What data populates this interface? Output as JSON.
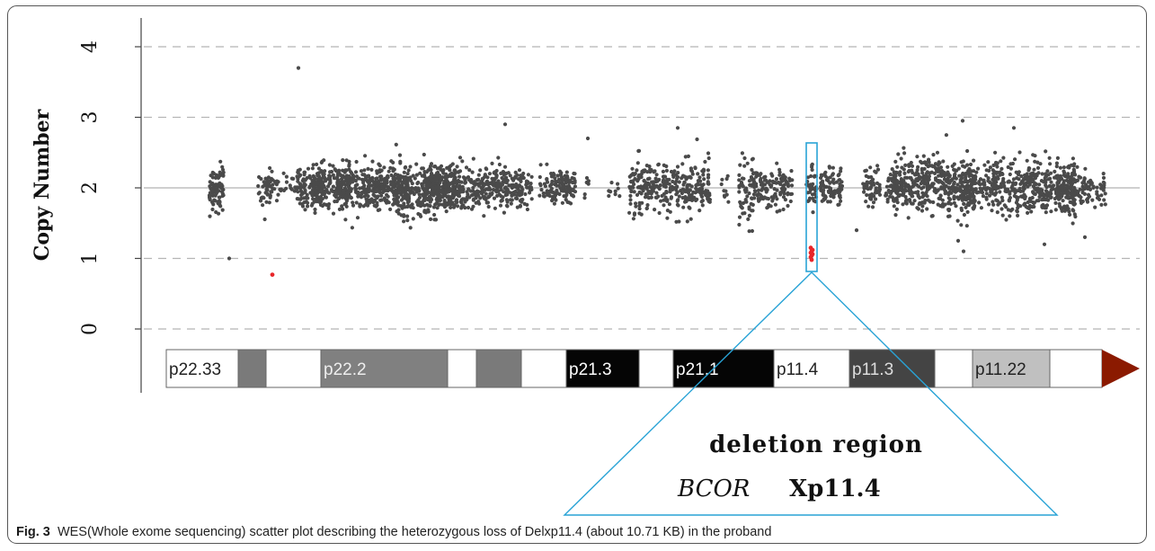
{
  "figure": {
    "caption_label": "Fig. 3",
    "caption_text": "WES(Whole exome sequencing) scatter plot describing the heterozygous loss of Delxp11.4 (about 10.71 KB) in the proband"
  },
  "chart_data": {
    "type": "scatter",
    "ylabel": "Copy Number",
    "y_ticks": [
      "0",
      "1",
      "2",
      "3",
      "4"
    ],
    "ylim": [
      -0.9,
      4.3
    ],
    "reference_line": 2,
    "grid": "dashed horizontal at 0, 1, 3, 4",
    "colors": {
      "normal_points": "#4a4a4a",
      "deleted_points": "#e8262a",
      "highlight_box": "#29a3d6",
      "baseline": "#bfbfbf",
      "centromere": "#8b1a00"
    },
    "clusters": [
      {
        "x": 241,
        "w": 8,
        "y": 2.0,
        "s": 0.16,
        "n": 90
      },
      {
        "x": 294,
        "w": 7,
        "y": 1.95,
        "s": 0.14,
        "n": 30
      },
      {
        "x": 317,
        "w": 22,
        "y": 2.0,
        "s": 0.12,
        "n": 60
      },
      {
        "x": 345,
        "w": 16,
        "y": 2.05,
        "s": 0.16,
        "n": 90
      },
      {
        "x": 370,
        "w": 22,
        "y": 2.0,
        "s": 0.15,
        "n": 170
      },
      {
        "x": 400,
        "w": 25,
        "y": 2.0,
        "s": 0.15,
        "n": 160
      },
      {
        "x": 430,
        "w": 25,
        "y": 2.0,
        "s": 0.14,
        "n": 160
      },
      {
        "x": 462,
        "w": 25,
        "y": 2.0,
        "s": 0.18,
        "n": 220
      },
      {
        "x": 490,
        "w": 18,
        "y": 2.0,
        "s": 0.15,
        "n": 140
      },
      {
        "x": 525,
        "w": 40,
        "y": 2.0,
        "s": 0.15,
        "n": 330
      },
      {
        "x": 578,
        "w": 14,
        "y": 2.0,
        "s": 0.12,
        "n": 90
      },
      {
        "x": 620,
        "w": 20,
        "y": 2.0,
        "s": 0.13,
        "n": 130
      },
      {
        "x": 655,
        "w": 5,
        "y": 2.05,
        "s": 0.1,
        "n": 8
      },
      {
        "x": 682,
        "w": 8,
        "y": 2.0,
        "s": 0.08,
        "n": 10
      },
      {
        "x": 745,
        "w": 45,
        "y": 2.0,
        "s": 0.18,
        "n": 320
      },
      {
        "x": 806,
        "w": 5,
        "y": 2.0,
        "s": 0.1,
        "n": 10
      },
      {
        "x": 830,
        "w": 8,
        "y": 2.0,
        "s": 0.24,
        "n": 60
      },
      {
        "x": 860,
        "w": 22,
        "y": 2.0,
        "s": 0.14,
        "n": 130
      },
      {
        "x": 903,
        "w": 6,
        "y": 2.0,
        "s": 0.14,
        "n": 40
      },
      {
        "x": 925,
        "w": 12,
        "y": 2.0,
        "s": 0.13,
        "n": 90
      },
      {
        "x": 970,
        "w": 10,
        "y": 2.0,
        "s": 0.14,
        "n": 60
      },
      {
        "x": 995,
        "w": 10,
        "y": 2.0,
        "s": 0.15,
        "n": 50
      },
      {
        "x": 1040,
        "w": 46,
        "y": 2.05,
        "s": 0.19,
        "n": 420
      },
      {
        "x": 1090,
        "w": 20,
        "y": 2.0,
        "s": 0.14,
        "n": 110
      },
      {
        "x": 1150,
        "w": 46,
        "y": 2.0,
        "s": 0.18,
        "n": 380
      },
      {
        "x": 1190,
        "w": 15,
        "y": 2.0,
        "s": 0.14,
        "n": 90
      },
      {
        "x": 1218,
        "w": 12,
        "y": 1.95,
        "s": 0.15,
        "n": 50
      }
    ],
    "outliers": [
      {
        "x": 332,
        "y": 3.7
      },
      {
        "x": 255,
        "y": 1.0
      },
      {
        "x": 562,
        "y": 2.9
      },
      {
        "x": 654,
        "y": 2.7
      },
      {
        "x": 754,
        "y": 2.85
      },
      {
        "x": 1072,
        "y": 1.1
      },
      {
        "x": 1066,
        "y": 1.25
      },
      {
        "x": 1162,
        "y": 1.2
      },
      {
        "x": 1207,
        "y": 1.3
      },
      {
        "x": 1128,
        "y": 2.85
      },
      {
        "x": 1071,
        "y": 2.95
      },
      {
        "x": 953,
        "y": 1.4
      }
    ],
    "deleted_points": [
      {
        "x": 303,
        "y": 0.77
      },
      {
        "x": 902,
        "y": 1.15
      },
      {
        "x": 903,
        "y": 1.1
      },
      {
        "x": 904,
        "y": 1.06
      },
      {
        "x": 902,
        "y": 1.02
      },
      {
        "x": 903,
        "y": 0.98
      },
      {
        "x": 904,
        "y": 1.12
      },
      {
        "x": 902,
        "y": 1.08
      },
      {
        "x": 903,
        "y": 1.04
      }
    ],
    "ideogram": {
      "bands": [
        {
          "label": "p22.33",
          "start": 185,
          "end": 265,
          "fill": "#ffffff",
          "text": "#222222"
        },
        {
          "label": "",
          "start": 265,
          "end": 296,
          "fill": "#7a7a7a",
          "text": "#ffffff"
        },
        {
          "label": "",
          "start": 296,
          "end": 357,
          "fill": "#ffffff",
          "text": "#222222"
        },
        {
          "label": "p22.2",
          "start": 357,
          "end": 498,
          "fill": "#808080",
          "text": "#eeeeee"
        },
        {
          "label": "",
          "start": 498,
          "end": 530,
          "fill": "#ffffff",
          "text": "#222222"
        },
        {
          "label": "",
          "start": 530,
          "end": 580,
          "fill": "#7a7a7a",
          "text": "#ffffff"
        },
        {
          "label": "",
          "start": 580,
          "end": 630,
          "fill": "#ffffff",
          "text": "#222222"
        },
        {
          "label": "p21.3",
          "start": 630,
          "end": 711,
          "fill": "#050505",
          "text": "#ffffff"
        },
        {
          "label": "",
          "start": 711,
          "end": 749,
          "fill": "#ffffff",
          "text": "#222222"
        },
        {
          "label": "p21.1",
          "start": 749,
          "end": 861,
          "fill": "#050505",
          "text": "#ffffff"
        },
        {
          "label": "p11.4",
          "start": 861,
          "end": 945,
          "fill": "#ffffff",
          "text": "#222222"
        },
        {
          "label": "p11.3",
          "start": 945,
          "end": 1040,
          "fill": "#444444",
          "text": "#dddddd"
        },
        {
          "label": "",
          "start": 1040,
          "end": 1082,
          "fill": "#ffffff",
          "text": "#222222"
        },
        {
          "label": "p11.22",
          "start": 1082,
          "end": 1168,
          "fill": "#c0c0c0",
          "text": "#222222"
        },
        {
          "label": "",
          "start": 1168,
          "end": 1226,
          "fill": "#ffffff",
          "text": "#222222"
        }
      ]
    },
    "annotation": {
      "line1": "deletion region",
      "gene": "BCOR",
      "locus": "Xp11.4"
    }
  }
}
